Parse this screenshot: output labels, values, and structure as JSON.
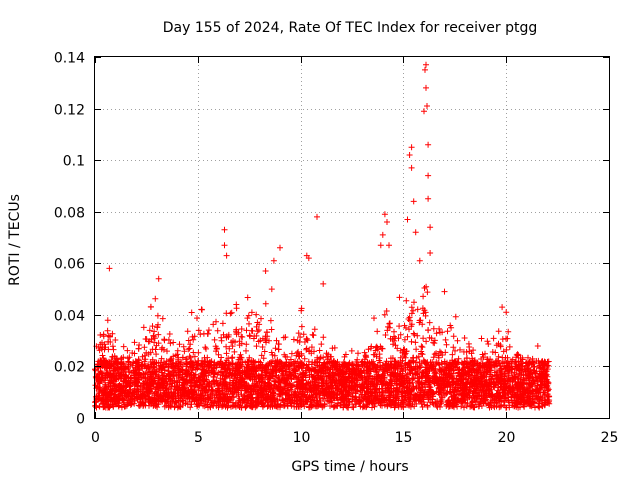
{
  "chart_data": {
    "type": "scatter",
    "title": "Day 155 of 2024, Rate Of TEC Index for receiver ptgg",
    "xlabel": "GPS time / hours",
    "ylabel": "ROTI / TECUs",
    "xlim": [
      0,
      25
    ],
    "ylim": [
      0,
      0.14
    ],
    "xticks": [
      0,
      5,
      10,
      15,
      20,
      25
    ],
    "yticks": [
      0,
      0.02,
      0.04,
      0.06,
      0.08,
      0.1,
      0.12,
      0.14
    ],
    "grid": true,
    "marker": "+",
    "color": "#ff0000",
    "data_extent_x": [
      0,
      22.1
    ],
    "outliers": [
      [
        0.7,
        0.058
      ],
      [
        3.1,
        0.054
      ],
      [
        6.3,
        0.073
      ],
      [
        6.3,
        0.067
      ],
      [
        6.4,
        0.063
      ],
      [
        8.3,
        0.057
      ],
      [
        8.6,
        0.05
      ],
      [
        8.7,
        0.061
      ],
      [
        9.0,
        0.066
      ],
      [
        10.3,
        0.063
      ],
      [
        10.4,
        0.062
      ],
      [
        10.8,
        0.078
      ],
      [
        11.1,
        0.052
      ],
      [
        13.9,
        0.067
      ],
      [
        14.0,
        0.071
      ],
      [
        14.1,
        0.079
      ],
      [
        14.2,
        0.076
      ],
      [
        14.3,
        0.067
      ],
      [
        15.2,
        0.077
      ],
      [
        15.3,
        0.102
      ],
      [
        15.4,
        0.105
      ],
      [
        15.4,
        0.097
      ],
      [
        15.5,
        0.084
      ],
      [
        15.6,
        0.072
      ],
      [
        15.8,
        0.061
      ],
      [
        16.0,
        0.119
      ],
      [
        16.05,
        0.135
      ],
      [
        16.1,
        0.137
      ],
      [
        16.1,
        0.128
      ],
      [
        16.15,
        0.121
      ],
      [
        16.2,
        0.106
      ],
      [
        16.2,
        0.094
      ],
      [
        16.2,
        0.085
      ],
      [
        16.3,
        0.074
      ],
      [
        16.3,
        0.064
      ],
      [
        17.0,
        0.049
      ],
      [
        19.8,
        0.043
      ],
      [
        20.0,
        0.041
      ]
    ],
    "activity_profile": [
      [
        0.0,
        0.035
      ],
      [
        0.5,
        0.04
      ],
      [
        0.7,
        0.046
      ],
      [
        1.0,
        0.03
      ],
      [
        1.5,
        0.03
      ],
      [
        2.0,
        0.032
      ],
      [
        2.5,
        0.04
      ],
      [
        2.8,
        0.046
      ],
      [
        3.0,
        0.049
      ],
      [
        3.5,
        0.035
      ],
      [
        4.0,
        0.033
      ],
      [
        4.5,
        0.04
      ],
      [
        5.0,
        0.046
      ],
      [
        5.5,
        0.042
      ],
      [
        6.0,
        0.04
      ],
      [
        6.5,
        0.045
      ],
      [
        7.0,
        0.044
      ],
      [
        7.5,
        0.048
      ],
      [
        8.0,
        0.046
      ],
      [
        8.5,
        0.046
      ],
      [
        9.0,
        0.035
      ],
      [
        9.5,
        0.032
      ],
      [
        10.0,
        0.047
      ],
      [
        10.5,
        0.04
      ],
      [
        11.0,
        0.034
      ],
      [
        11.5,
        0.032
      ],
      [
        12.0,
        0.026
      ],
      [
        12.5,
        0.027
      ],
      [
        13.0,
        0.03
      ],
      [
        13.5,
        0.038
      ],
      [
        14.0,
        0.05
      ],
      [
        14.5,
        0.048
      ],
      [
        15.0,
        0.046
      ],
      [
        15.5,
        0.058
      ],
      [
        16.0,
        0.055
      ],
      [
        16.5,
        0.046
      ],
      [
        17.0,
        0.045
      ],
      [
        17.5,
        0.04
      ],
      [
        18.0,
        0.036
      ],
      [
        18.5,
        0.03
      ],
      [
        19.0,
        0.032
      ],
      [
        19.5,
        0.036
      ],
      [
        20.0,
        0.04
      ],
      [
        20.5,
        0.032
      ],
      [
        21.0,
        0.028
      ],
      [
        21.5,
        0.03
      ],
      [
        22.1,
        0.026
      ]
    ]
  }
}
